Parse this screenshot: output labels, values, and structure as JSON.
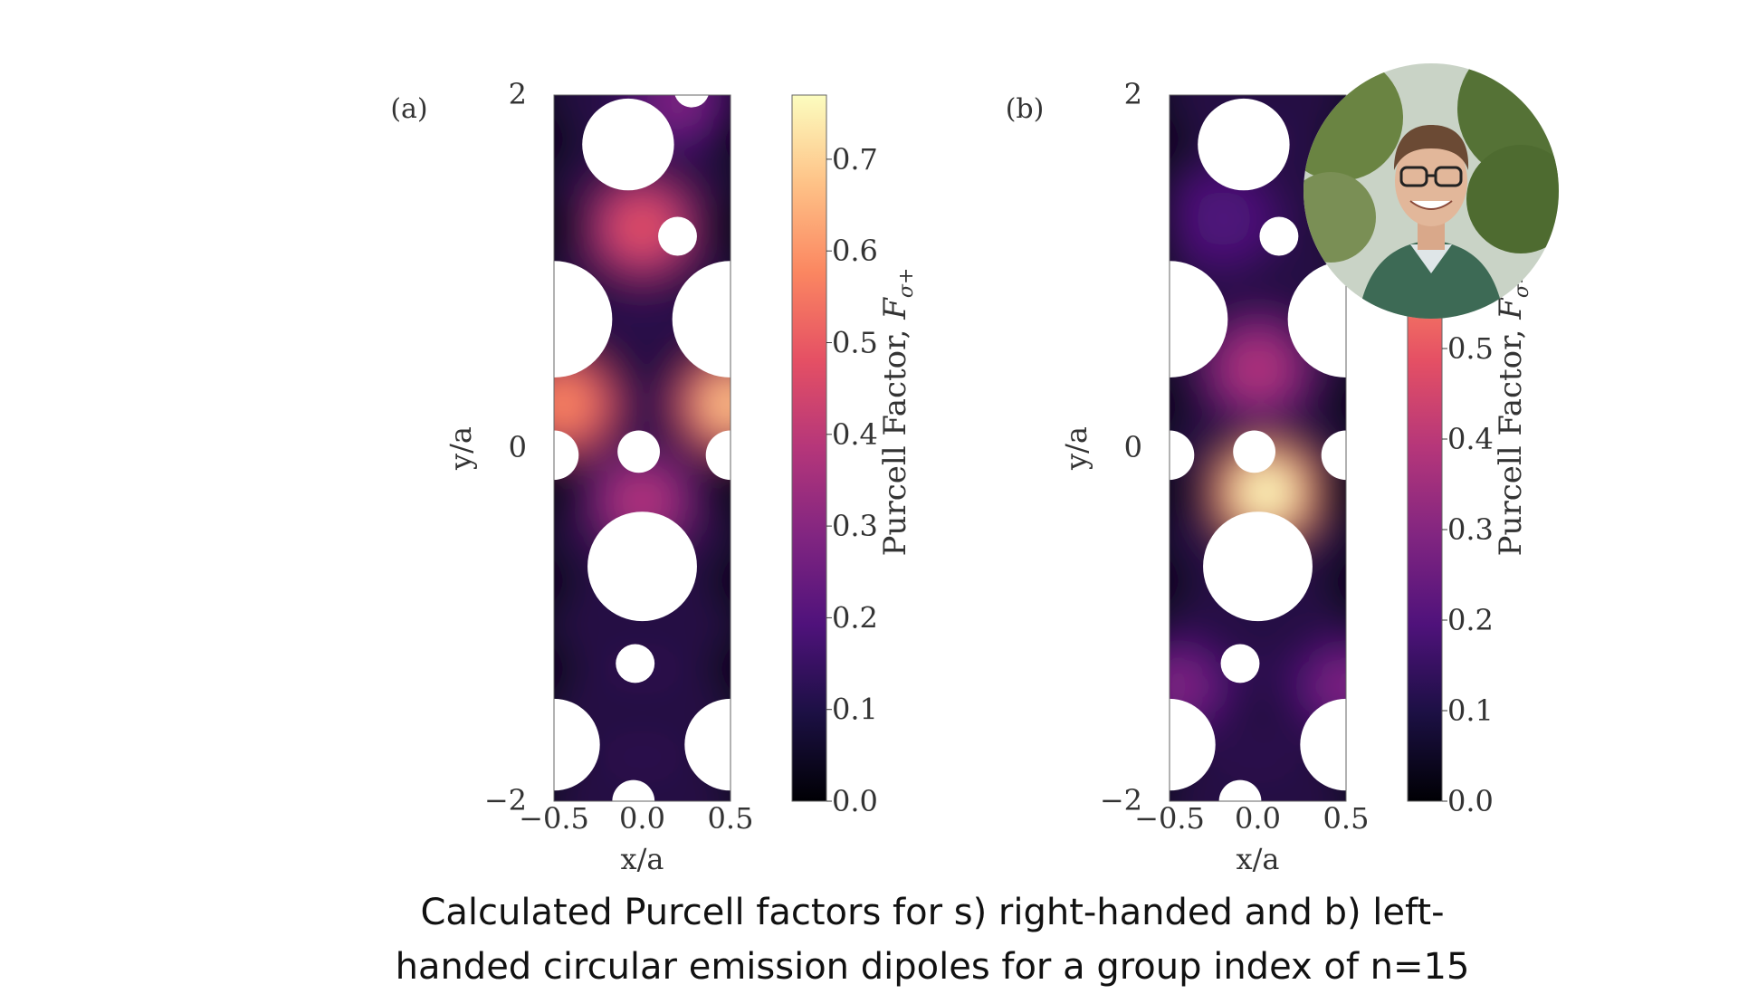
{
  "chart_data": [
    {
      "type": "heatmap",
      "panel_label": "(a)",
      "xlabel": "x/a",
      "ylabel": "y/a",
      "x_ticks": [
        "−0.5",
        "0.0",
        "0.5"
      ],
      "y_ticks": [
        "−2",
        "0",
        "2"
      ],
      "xlim": [
        -0.5,
        0.5
      ],
      "ylim": [
        -2,
        2
      ],
      "colormap": "magma",
      "colorbar_label": "Purcell Factor, ",
      "colorbar_symbol": "F",
      "colorbar_subscript": "σ+",
      "colorbar_ticks": [
        "0.0",
        "0.1",
        "0.2",
        "0.3",
        "0.4",
        "0.5",
        "0.6",
        "0.7"
      ],
      "colorbar_range": [
        0,
        0.77
      ],
      "holes": [
        {
          "x": -0.08,
          "y": 1.72,
          "r": 0.26
        },
        {
          "x": 0.2,
          "y": 1.2,
          "r": 0.11
        },
        {
          "x": -0.5,
          "y": 0.73,
          "r": 0.33
        },
        {
          "x": 0.5,
          "y": 0.73,
          "r": 0.33
        },
        {
          "x": -0.5,
          "y": -0.04,
          "r": 0.14
        },
        {
          "x": -0.02,
          "y": -0.02,
          "r": 0.12
        },
        {
          "x": 0.5,
          "y": -0.04,
          "r": 0.14
        },
        {
          "x": 0.0,
          "y": -0.67,
          "r": 0.31
        },
        {
          "x": -0.04,
          "y": -1.22,
          "r": 0.11
        },
        {
          "x": -0.5,
          "y": -1.68,
          "r": 0.26
        },
        {
          "x": 0.5,
          "y": -1.68,
          "r": 0.26
        },
        {
          "x": -0.05,
          "y": -2.0,
          "r": 0.12
        },
        {
          "x": 0.28,
          "y": 2.03,
          "r": 0.1
        }
      ],
      "hotspots": [
        {
          "x": -0.45,
          "y": 0.25,
          "value": 0.6
        },
        {
          "x": 0.5,
          "y": 0.25,
          "value": 0.7
        },
        {
          "x": 0.0,
          "y": 1.25,
          "value": 0.45
        },
        {
          "x": 0.0,
          "y": -0.3,
          "value": 0.35
        },
        {
          "x": 0.2,
          "y": 1.97,
          "value": 0.3
        }
      ]
    },
    {
      "type": "heatmap",
      "panel_label": "(b)",
      "xlabel": "x/a",
      "ylabel": "y/a",
      "x_ticks": [
        "−0.5",
        "0.0",
        "0.5"
      ],
      "y_ticks": [
        "−2",
        "0",
        "2"
      ],
      "xlim": [
        -0.5,
        0.5
      ],
      "ylim": [
        -2,
        2
      ],
      "colormap": "magma",
      "colorbar_label": "Purcell Factor, ",
      "colorbar_symbol": "F",
      "colorbar_subscript": "σ−",
      "colorbar_ticks": [
        "0.0",
        "0.1",
        "0.2",
        "0.3",
        "0.4",
        "0.5"
      ],
      "colorbar_range": [
        0,
        0.78
      ],
      "holes": [
        {
          "x": -0.08,
          "y": 1.72,
          "r": 0.26
        },
        {
          "x": 0.12,
          "y": 1.2,
          "r": 0.11
        },
        {
          "x": -0.5,
          "y": 0.73,
          "r": 0.33
        },
        {
          "x": 0.5,
          "y": 0.73,
          "r": 0.33
        },
        {
          "x": -0.5,
          "y": -0.04,
          "r": 0.14
        },
        {
          "x": -0.02,
          "y": -0.02,
          "r": 0.12
        },
        {
          "x": 0.5,
          "y": -0.04,
          "r": 0.14
        },
        {
          "x": 0.0,
          "y": -0.67,
          "r": 0.31
        },
        {
          "x": -0.1,
          "y": -1.22,
          "r": 0.11
        },
        {
          "x": -0.5,
          "y": -1.68,
          "r": 0.26
        },
        {
          "x": 0.5,
          "y": -1.68,
          "r": 0.26
        },
        {
          "x": -0.1,
          "y": -2.0,
          "r": 0.12
        }
      ],
      "hotspots": [
        {
          "x": 0.05,
          "y": -0.25,
          "value": 0.78
        },
        {
          "x": 0.0,
          "y": 0.45,
          "value": 0.35
        },
        {
          "x": -0.45,
          "y": -1.35,
          "value": 0.3
        },
        {
          "x": 0.5,
          "y": -1.35,
          "value": 0.3
        },
        {
          "x": -0.2,
          "y": 1.3,
          "value": 0.2
        }
      ]
    }
  ],
  "caption": {
    "line1": "Calculated Purcell factors for s) right-handed and b) left-",
    "line2": "handed circular emission dipoles for a group index of n=15"
  },
  "photo": {
    "colors": {
      "sky": "#c9d3c6",
      "foliage": "#5f7a3a",
      "shirt": "#3d6a55",
      "skin": "#e2b79a",
      "hair": "#6b4a34",
      "glasses": "#222222"
    }
  }
}
